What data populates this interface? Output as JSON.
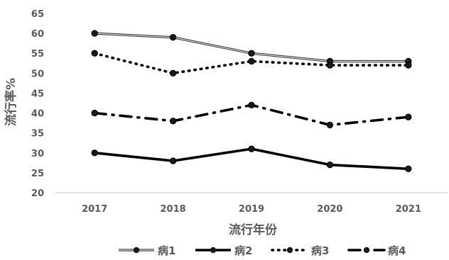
{
  "chart_data": {
    "type": "line",
    "categories": [
      "2017",
      "2018",
      "2019",
      "2020",
      "2021"
    ],
    "xlabel": "流行年份",
    "ylabel": "流行率%",
    "ylim": [
      20,
      65
    ],
    "yticks": [
      20,
      25,
      30,
      35,
      40,
      45,
      50,
      55,
      60,
      65
    ],
    "grid": false,
    "legend_position": "bottom",
    "series": [
      {
        "name": "病1",
        "values": [
          60,
          59,
          55,
          53,
          53
        ],
        "style": "double-solid",
        "color": "#333333"
      },
      {
        "name": "病2",
        "values": [
          30,
          28,
          31,
          27,
          26
        ],
        "style": "thick-solid",
        "color": "#000000"
      },
      {
        "name": "病3",
        "values": [
          55,
          50,
          53,
          52,
          52
        ],
        "style": "dotted",
        "color": "#000000"
      },
      {
        "name": "病4",
        "values": [
          40,
          38,
          42,
          37,
          39
        ],
        "style": "dash-dot",
        "color": "#000000"
      }
    ]
  }
}
